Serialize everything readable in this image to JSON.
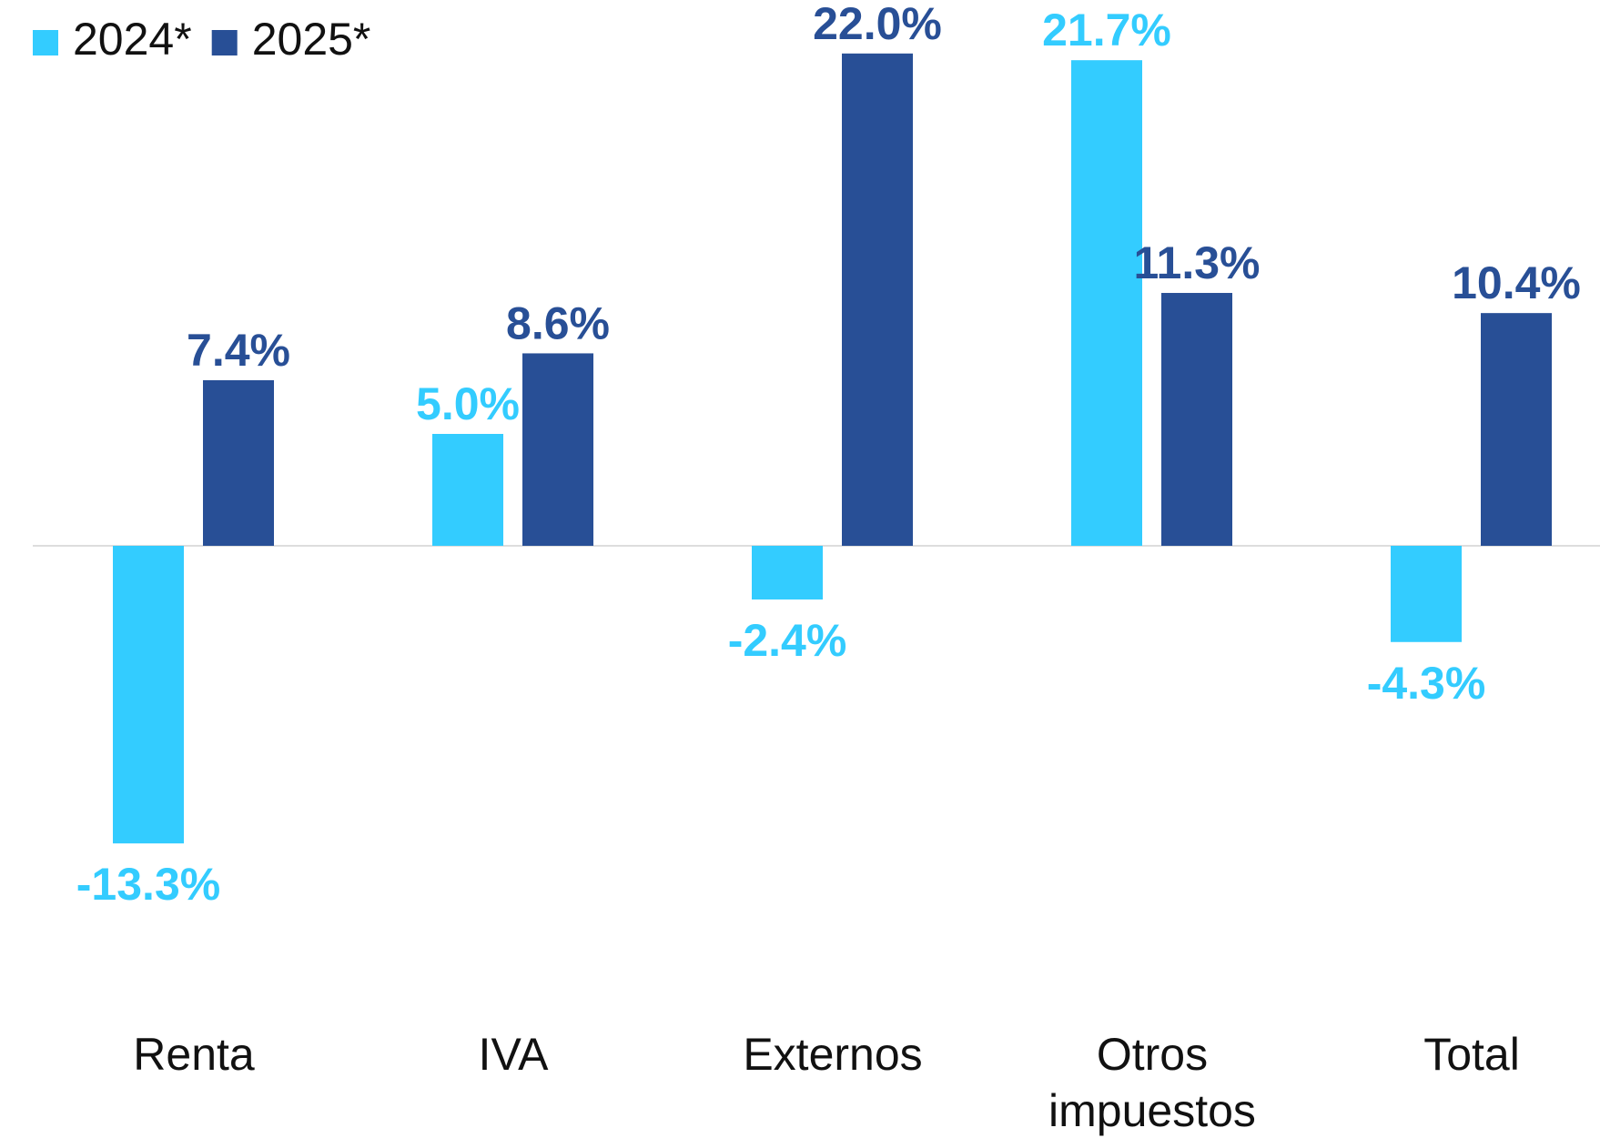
{
  "chart_data": {
    "type": "bar",
    "categories": [
      "Renta",
      "IVA",
      "Externos",
      "Otros impuestos",
      "Total"
    ],
    "series": [
      {
        "name": "2024*",
        "color": "#33ccff",
        "values": [
          -13.3,
          5.0,
          -2.4,
          21.7,
          -4.3
        ],
        "value_labels": [
          "-13.3%",
          "5.0%",
          "-2.4%",
          "21.7%",
          "-4.3%"
        ]
      },
      {
        "name": "2025*",
        "color": "#284f96",
        "values": [
          7.4,
          8.6,
          22.0,
          11.3,
          10.4
        ],
        "value_labels": [
          "7.4%",
          "8.6%",
          "22.0%",
          "11.3%",
          "10.4%"
        ]
      }
    ],
    "ylim": [
      -20,
      24
    ],
    "legend": "top-left"
  }
}
